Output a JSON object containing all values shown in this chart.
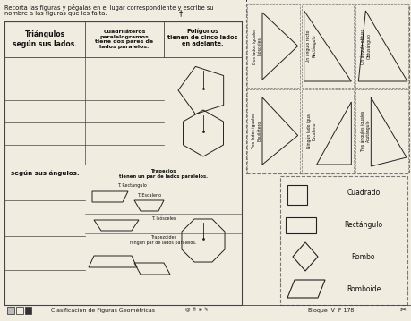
{
  "title_line1": "Recorta las figuras y pégalas en el lugar correspondiente y escribe su",
  "title_line2": "nombre a las figuras que les falta.",
  "footer_text": "Clasificación de Figuras Geométricas",
  "footer_right": "Bloque IV  F 178",
  "col1_header": "Triángulos\nsegún sus lados.",
  "col2_header": "Cuadriláteros\nparalelogramos\ntiene dos pares de\nlados paralelos.",
  "col3_header": "Polígonos\ntienen de cinco lados\nen adelante.",
  "section2_col1": "según sus ángulos.",
  "trapecios_header": "Trapecios\ntienen un par de lados paralelos.",
  "trap_rect": "T. Rectángulo",
  "trap_esc": "T. Escaleno",
  "trap_isos": "T. Isósceles",
  "trapezoides_label": "Trapezoides\nningún par de lados paralelos.",
  "tri_top_row": [
    "Dos lados iguales\nIsósceles",
    "Un ángulo recto\nRectángulo",
    "Un ángulo obtuso\nObtusángulo"
  ],
  "tri_bot_row": [
    "Tres lados iguales\nEquilátero",
    "Ningún lado igual\nEscaleno",
    "Tres ángulos iguales\nAcutángulo"
  ],
  "quad_labels": [
    "Cuadrado",
    "Rectángulo",
    "Rombo",
    "Romboide"
  ],
  "bg_color": "#f0ece0",
  "line_color": "#444444",
  "dash_color": "#777777",
  "shape_color": "#222222",
  "text_color": "#111111"
}
